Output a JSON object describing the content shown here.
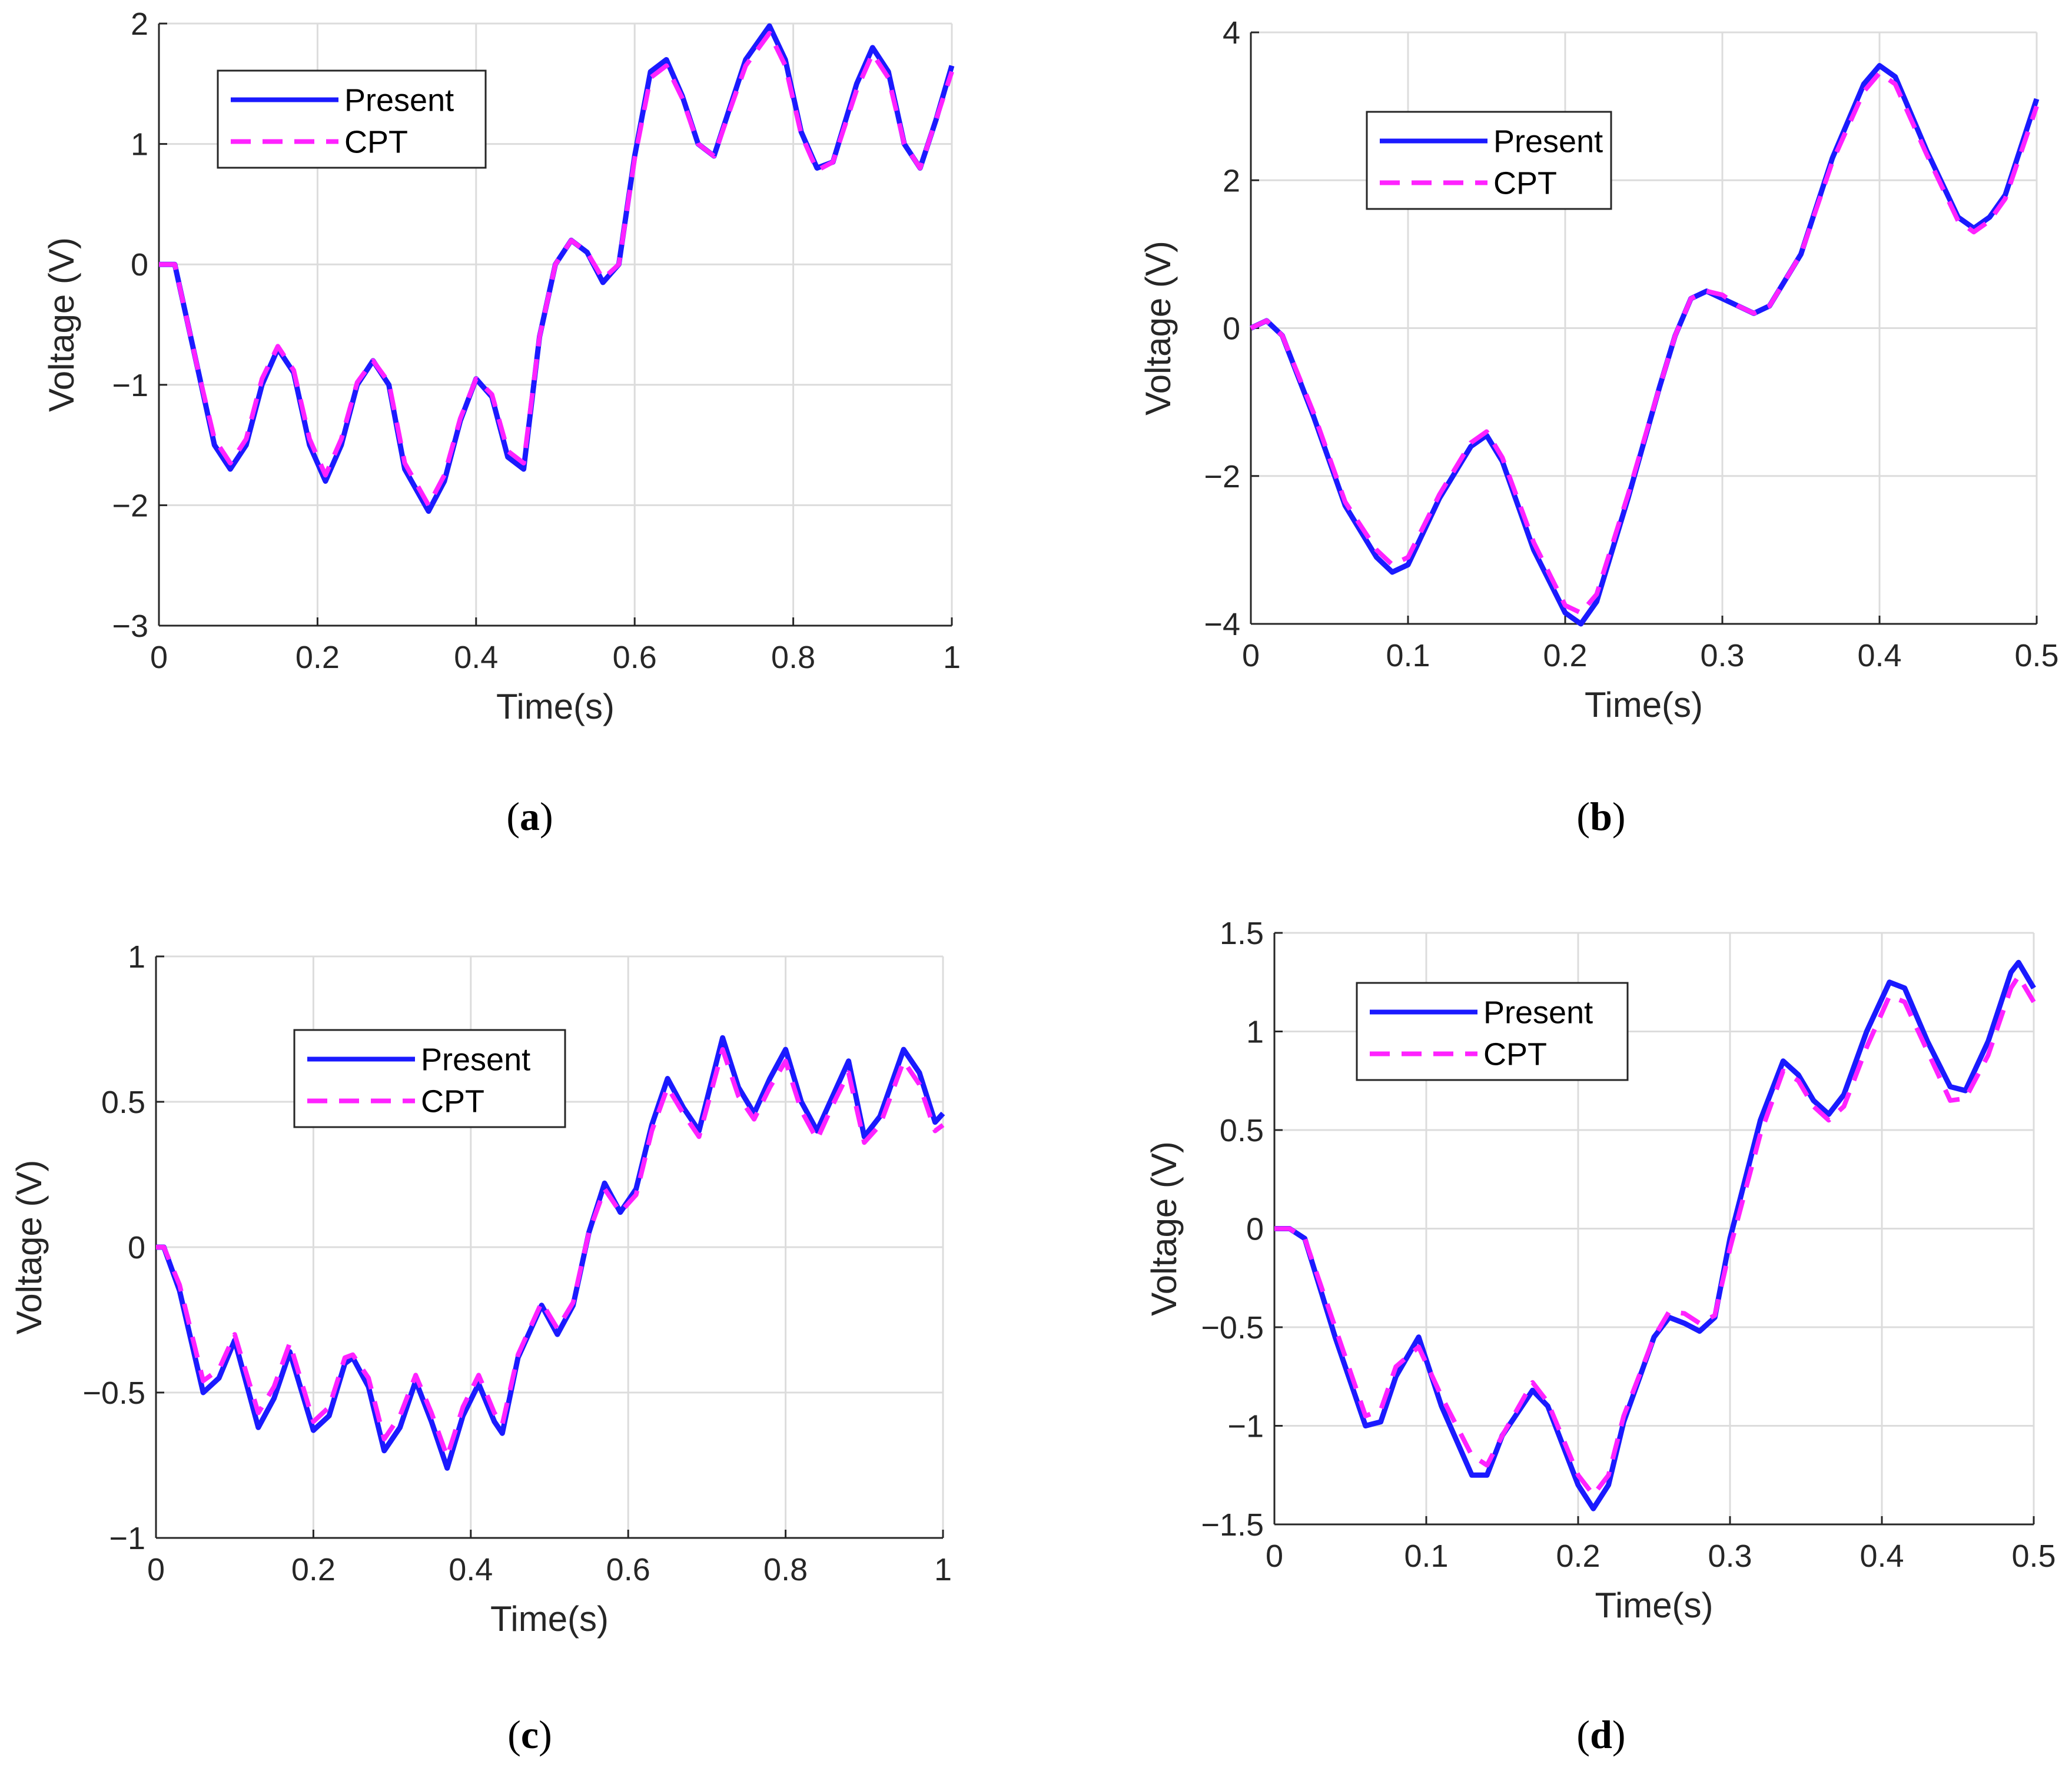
{
  "figure": {
    "colors": {
      "present": "#1a1aff",
      "cpt": "#ff22ff",
      "grid": "#dcdcdc",
      "axis": "#262626"
    },
    "legend": {
      "present_label": "Present",
      "cpt_label": "CPT"
    }
  },
  "chart_data": [
    {
      "panel": "(a)",
      "panel_letter": "a",
      "type": "line",
      "xlabel": "Time(s)",
      "ylabel": "Voltage (V)",
      "xlim": [
        0,
        1
      ],
      "ylim": [
        -3,
        2
      ],
      "xticks": [
        0,
        0.2,
        0.4,
        0.6,
        0.8,
        1
      ],
      "xtick_labels": [
        "0",
        "0.2",
        "0.4",
        "0.6",
        "0.8",
        "1"
      ],
      "yticks": [
        -3,
        -2,
        -1,
        0,
        1,
        2
      ],
      "ytick_labels": [
        "−3",
        "−2",
        "−1",
        "0",
        "1",
        "2"
      ],
      "legend_position": "top-left",
      "x": [
        0,
        0.02,
        0.05,
        0.07,
        0.09,
        0.11,
        0.13,
        0.15,
        0.17,
        0.19,
        0.21,
        0.23,
        0.25,
        0.27,
        0.29,
        0.31,
        0.34,
        0.36,
        0.38,
        0.4,
        0.42,
        0.44,
        0.46,
        0.48,
        0.5,
        0.52,
        0.54,
        0.56,
        0.58,
        0.6,
        0.62,
        0.64,
        0.66,
        0.68,
        0.7,
        0.72,
        0.74,
        0.77,
        0.79,
        0.81,
        0.83,
        0.85,
        0.88,
        0.9,
        0.92,
        0.94,
        0.96,
        0.98,
        1.0
      ],
      "series": [
        {
          "name": "Present",
          "values": [
            0,
            0,
            -0.9,
            -1.5,
            -1.7,
            -1.5,
            -1.0,
            -0.7,
            -0.9,
            -1.5,
            -1.8,
            -1.5,
            -1.0,
            -0.8,
            -1.0,
            -1.7,
            -2.05,
            -1.8,
            -1.3,
            -0.95,
            -1.1,
            -1.6,
            -1.7,
            -0.6,
            0.0,
            0.2,
            0.1,
            -0.15,
            0.0,
            0.9,
            1.6,
            1.7,
            1.4,
            1.0,
            0.9,
            1.3,
            1.7,
            1.98,
            1.7,
            1.1,
            0.8,
            0.85,
            1.5,
            1.8,
            1.6,
            1.0,
            0.8,
            1.2,
            1.65
          ]
        },
        {
          "name": "CPT",
          "values": [
            0,
            0,
            -0.9,
            -1.45,
            -1.65,
            -1.45,
            -0.95,
            -0.68,
            -0.88,
            -1.45,
            -1.75,
            -1.45,
            -0.98,
            -0.8,
            -0.98,
            -1.65,
            -2.0,
            -1.75,
            -1.28,
            -0.95,
            -1.08,
            -1.55,
            -1.65,
            -0.6,
            0.0,
            0.2,
            0.1,
            -0.12,
            0.0,
            0.88,
            1.55,
            1.65,
            1.38,
            1.0,
            0.9,
            1.28,
            1.65,
            1.92,
            1.65,
            1.08,
            0.78,
            0.85,
            1.45,
            1.75,
            1.55,
            1.0,
            0.8,
            1.2,
            1.6
          ]
        }
      ]
    },
    {
      "panel": "(b)",
      "panel_letter": "b",
      "type": "line",
      "xlabel": "Time(s)",
      "ylabel": "Voltage (V)",
      "xlim": [
        0,
        0.5
      ],
      "ylim": [
        -4,
        4
      ],
      "xticks": [
        0,
        0.1,
        0.2,
        0.3,
        0.4,
        0.5
      ],
      "xtick_labels": [
        "0",
        "0.1",
        "0.2",
        "0.3",
        "0.4",
        "0.5"
      ],
      "yticks": [
        -4,
        -2,
        0,
        2,
        4
      ],
      "ytick_labels": [
        "−4",
        "−2",
        "0",
        "2",
        "4"
      ],
      "legend_position": "top-left",
      "x": [
        0,
        0.01,
        0.02,
        0.04,
        0.06,
        0.08,
        0.09,
        0.1,
        0.12,
        0.14,
        0.15,
        0.16,
        0.18,
        0.2,
        0.21,
        0.22,
        0.24,
        0.26,
        0.27,
        0.28,
        0.29,
        0.3,
        0.31,
        0.32,
        0.33,
        0.35,
        0.37,
        0.39,
        0.4,
        0.41,
        0.43,
        0.45,
        0.46,
        0.47,
        0.48,
        0.5
      ],
      "series": [
        {
          "name": "Present",
          "values": [
            0,
            0.1,
            -0.1,
            -1.2,
            -2.4,
            -3.1,
            -3.3,
            -3.2,
            -2.3,
            -1.6,
            -1.45,
            -1.8,
            -3.0,
            -3.85,
            -4.0,
            -3.7,
            -2.3,
            -0.8,
            -0.1,
            0.4,
            0.5,
            0.4,
            0.3,
            0.2,
            0.3,
            1.0,
            2.3,
            3.3,
            3.55,
            3.4,
            2.4,
            1.5,
            1.35,
            1.5,
            1.8,
            3.1
          ]
        },
        {
          "name": "CPT",
          "values": [
            0,
            0.1,
            -0.1,
            -1.15,
            -2.35,
            -3.0,
            -3.2,
            -3.1,
            -2.25,
            -1.55,
            -1.4,
            -1.75,
            -2.9,
            -3.75,
            -3.85,
            -3.6,
            -2.25,
            -0.8,
            -0.1,
            0.4,
            0.5,
            0.45,
            0.3,
            0.2,
            0.3,
            1.0,
            2.25,
            3.2,
            3.45,
            3.3,
            2.35,
            1.45,
            1.3,
            1.45,
            1.75,
            3.0
          ]
        }
      ]
    },
    {
      "panel": "(c)",
      "panel_letter": "c",
      "type": "line",
      "xlabel": "Time(s)",
      "ylabel": "Voltage (V)",
      "xlim": [
        0,
        1
      ],
      "ylim": [
        -1,
        1
      ],
      "xticks": [
        0,
        0.2,
        0.4,
        0.6,
        0.8,
        1
      ],
      "xtick_labels": [
        "0",
        "0.2",
        "0.4",
        "0.6",
        "0.8",
        "1"
      ],
      "yticks": [
        -1,
        -0.5,
        0,
        0.5,
        1
      ],
      "ytick_labels": [
        "−1",
        "−0.5",
        "0",
        "0.5",
        "1"
      ],
      "legend_position": "top-center",
      "x": [
        0,
        0.01,
        0.03,
        0.06,
        0.08,
        0.1,
        0.13,
        0.15,
        0.17,
        0.2,
        0.22,
        0.24,
        0.25,
        0.27,
        0.29,
        0.31,
        0.33,
        0.35,
        0.37,
        0.39,
        0.41,
        0.43,
        0.44,
        0.46,
        0.49,
        0.51,
        0.53,
        0.55,
        0.57,
        0.59,
        0.61,
        0.63,
        0.65,
        0.67,
        0.69,
        0.72,
        0.74,
        0.76,
        0.78,
        0.8,
        0.82,
        0.84,
        0.86,
        0.88,
        0.9,
        0.92,
        0.95,
        0.97,
        0.99,
        1.0
      ],
      "series": [
        {
          "name": "Present",
          "values": [
            0,
            0,
            -0.15,
            -0.5,
            -0.45,
            -0.32,
            -0.62,
            -0.52,
            -0.36,
            -0.63,
            -0.58,
            -0.4,
            -0.38,
            -0.48,
            -0.7,
            -0.62,
            -0.46,
            -0.6,
            -0.76,
            -0.58,
            -0.47,
            -0.6,
            -0.64,
            -0.38,
            -0.2,
            -0.3,
            -0.2,
            0.05,
            0.22,
            0.12,
            0.2,
            0.42,
            0.58,
            0.48,
            0.4,
            0.72,
            0.55,
            0.46,
            0.58,
            0.68,
            0.5,
            0.4,
            0.52,
            0.64,
            0.38,
            0.45,
            0.68,
            0.6,
            0.43,
            0.46
          ]
        },
        {
          "name": "CPT",
          "values": [
            0,
            0,
            -0.13,
            -0.46,
            -0.42,
            -0.3,
            -0.57,
            -0.48,
            -0.33,
            -0.6,
            -0.55,
            -0.38,
            -0.37,
            -0.45,
            -0.66,
            -0.58,
            -0.44,
            -0.57,
            -0.72,
            -0.55,
            -0.44,
            -0.57,
            -0.61,
            -0.37,
            -0.19,
            -0.28,
            -0.19,
            0.05,
            0.2,
            0.12,
            0.18,
            0.4,
            0.55,
            0.46,
            0.38,
            0.68,
            0.52,
            0.44,
            0.55,
            0.64,
            0.47,
            0.37,
            0.49,
            0.6,
            0.36,
            0.42,
            0.64,
            0.56,
            0.4,
            0.42
          ]
        }
      ]
    },
    {
      "panel": "(d)",
      "panel_letter": "d",
      "type": "line",
      "xlabel": "Time(s)",
      "ylabel": "Voltage (V)",
      "xlim": [
        0,
        0.5
      ],
      "ylim": [
        -1.5,
        1.5
      ],
      "xticks": [
        0,
        0.1,
        0.2,
        0.3,
        0.4,
        0.5
      ],
      "xtick_labels": [
        "0",
        "0.1",
        "0.2",
        "0.3",
        "0.4",
        "0.5"
      ],
      "yticks": [
        -1.5,
        -1,
        -0.5,
        0,
        0.5,
        1,
        1.5
      ],
      "ytick_labels": [
        "−1.5",
        "−1",
        "−0.5",
        "0",
        "0.5",
        "1",
        "1.5"
      ],
      "legend_position": "top-left",
      "x": [
        0,
        0.01,
        0.02,
        0.04,
        0.06,
        0.07,
        0.08,
        0.095,
        0.11,
        0.13,
        0.14,
        0.15,
        0.17,
        0.18,
        0.2,
        0.21,
        0.22,
        0.23,
        0.25,
        0.26,
        0.27,
        0.28,
        0.29,
        0.3,
        0.32,
        0.335,
        0.345,
        0.355,
        0.365,
        0.375,
        0.39,
        0.405,
        0.415,
        0.43,
        0.445,
        0.455,
        0.47,
        0.485,
        0.49,
        0.5
      ],
      "series": [
        {
          "name": "Present",
          "values": [
            0,
            0,
            -0.05,
            -0.55,
            -1.0,
            -0.98,
            -0.75,
            -0.55,
            -0.9,
            -1.25,
            -1.25,
            -1.05,
            -0.82,
            -0.9,
            -1.3,
            -1.42,
            -1.3,
            -0.98,
            -0.55,
            -0.45,
            -0.48,
            -0.52,
            -0.45,
            -0.05,
            0.55,
            0.85,
            0.78,
            0.65,
            0.58,
            0.68,
            1.0,
            1.25,
            1.22,
            0.95,
            0.72,
            0.7,
            0.95,
            1.3,
            1.35,
            1.22
          ]
        },
        {
          "name": "CPT",
          "values": [
            0,
            0,
            -0.05,
            -0.5,
            -0.95,
            -0.92,
            -0.7,
            -0.6,
            -0.85,
            -1.15,
            -1.2,
            -1.05,
            -0.78,
            -0.88,
            -1.25,
            -1.35,
            -1.25,
            -0.95,
            -0.55,
            -0.42,
            -0.43,
            -0.48,
            -0.44,
            -0.1,
            0.48,
            0.8,
            0.75,
            0.62,
            0.55,
            0.62,
            0.92,
            1.18,
            1.15,
            0.9,
            0.65,
            0.66,
            0.88,
            1.22,
            1.28,
            1.15
          ]
        }
      ]
    }
  ]
}
